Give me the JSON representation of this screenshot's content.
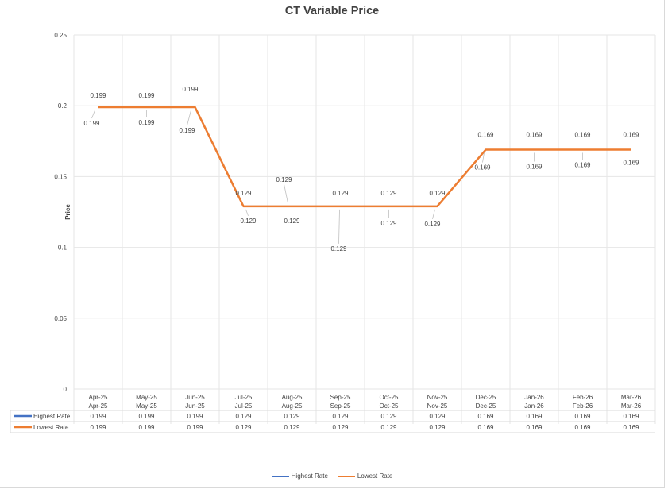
{
  "chart_data": {
    "type": "line",
    "title": "CT Variable Price",
    "xlabel": "",
    "ylabel": "Price",
    "ylim": [
      0,
      0.25
    ],
    "yticks": [
      "0",
      "0.05",
      "0.1",
      "0.15",
      "0.2",
      "0.25"
    ],
    "yticks_values": [
      0,
      0.05,
      0.1,
      0.15,
      0.2,
      0.25
    ],
    "categories": [
      "Apr-25",
      "May-25",
      "Jun-25",
      "Jul-25",
      "Aug-25",
      "Sep-25",
      "Oct-25",
      "Nov-25",
      "Dec-25",
      "Jan-26",
      "Feb-26",
      "Mar-26"
    ],
    "series": [
      {
        "name": "Highest Rate",
        "color": "#4472c4",
        "values": [
          0.199,
          0.199,
          0.199,
          0.129,
          0.129,
          0.129,
          0.129,
          0.129,
          0.169,
          0.169,
          0.169,
          0.169
        ]
      },
      {
        "name": "Lowest Rate",
        "color": "#ed7d31",
        "values": [
          0.199,
          0.199,
          0.199,
          0.129,
          0.129,
          0.129,
          0.129,
          0.129,
          0.169,
          0.169,
          0.169,
          0.169
        ]
      }
    ],
    "data_table": true,
    "grid": true,
    "legend_position": "bottom"
  }
}
